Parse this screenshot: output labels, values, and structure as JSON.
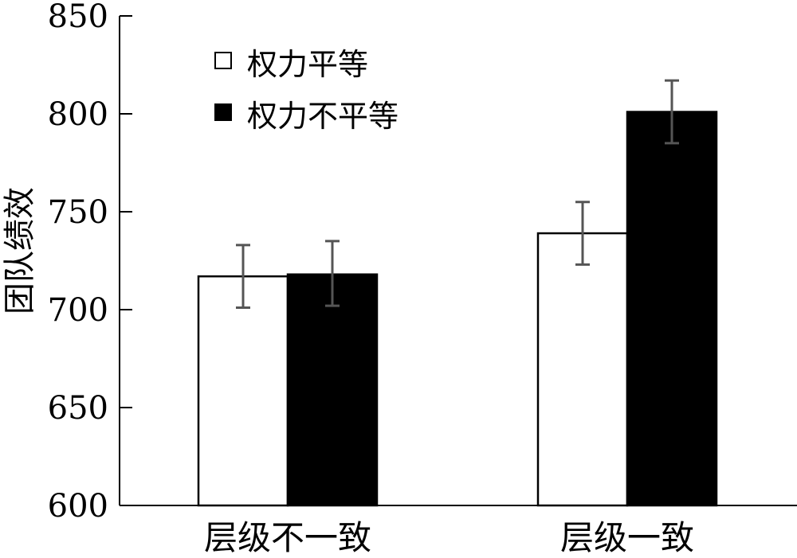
{
  "chart_data": {
    "type": "bar",
    "title": "",
    "xlabel": "",
    "ylabel": "团队绩效",
    "ylim": [
      600,
      850
    ],
    "yticks": [
      600,
      650,
      700,
      750,
      800,
      850
    ],
    "categories": [
      "层级不一致",
      "层级一致"
    ],
    "series": [
      {
        "name": "权力平等",
        "fill": "#ffffff",
        "values": [
          717,
          739
        ],
        "error_low": [
          701,
          723
        ],
        "error_high": [
          733,
          755
        ]
      },
      {
        "name": "权力不平等",
        "fill": "#000000",
        "values": [
          718,
          801
        ],
        "error_low": [
          702,
          785
        ],
        "error_high": [
          735,
          817
        ]
      }
    ],
    "legend_position": "top-left",
    "colors": {
      "axis": "#000000",
      "error_bar": "#555555",
      "bar_stroke": "#000000"
    }
  }
}
